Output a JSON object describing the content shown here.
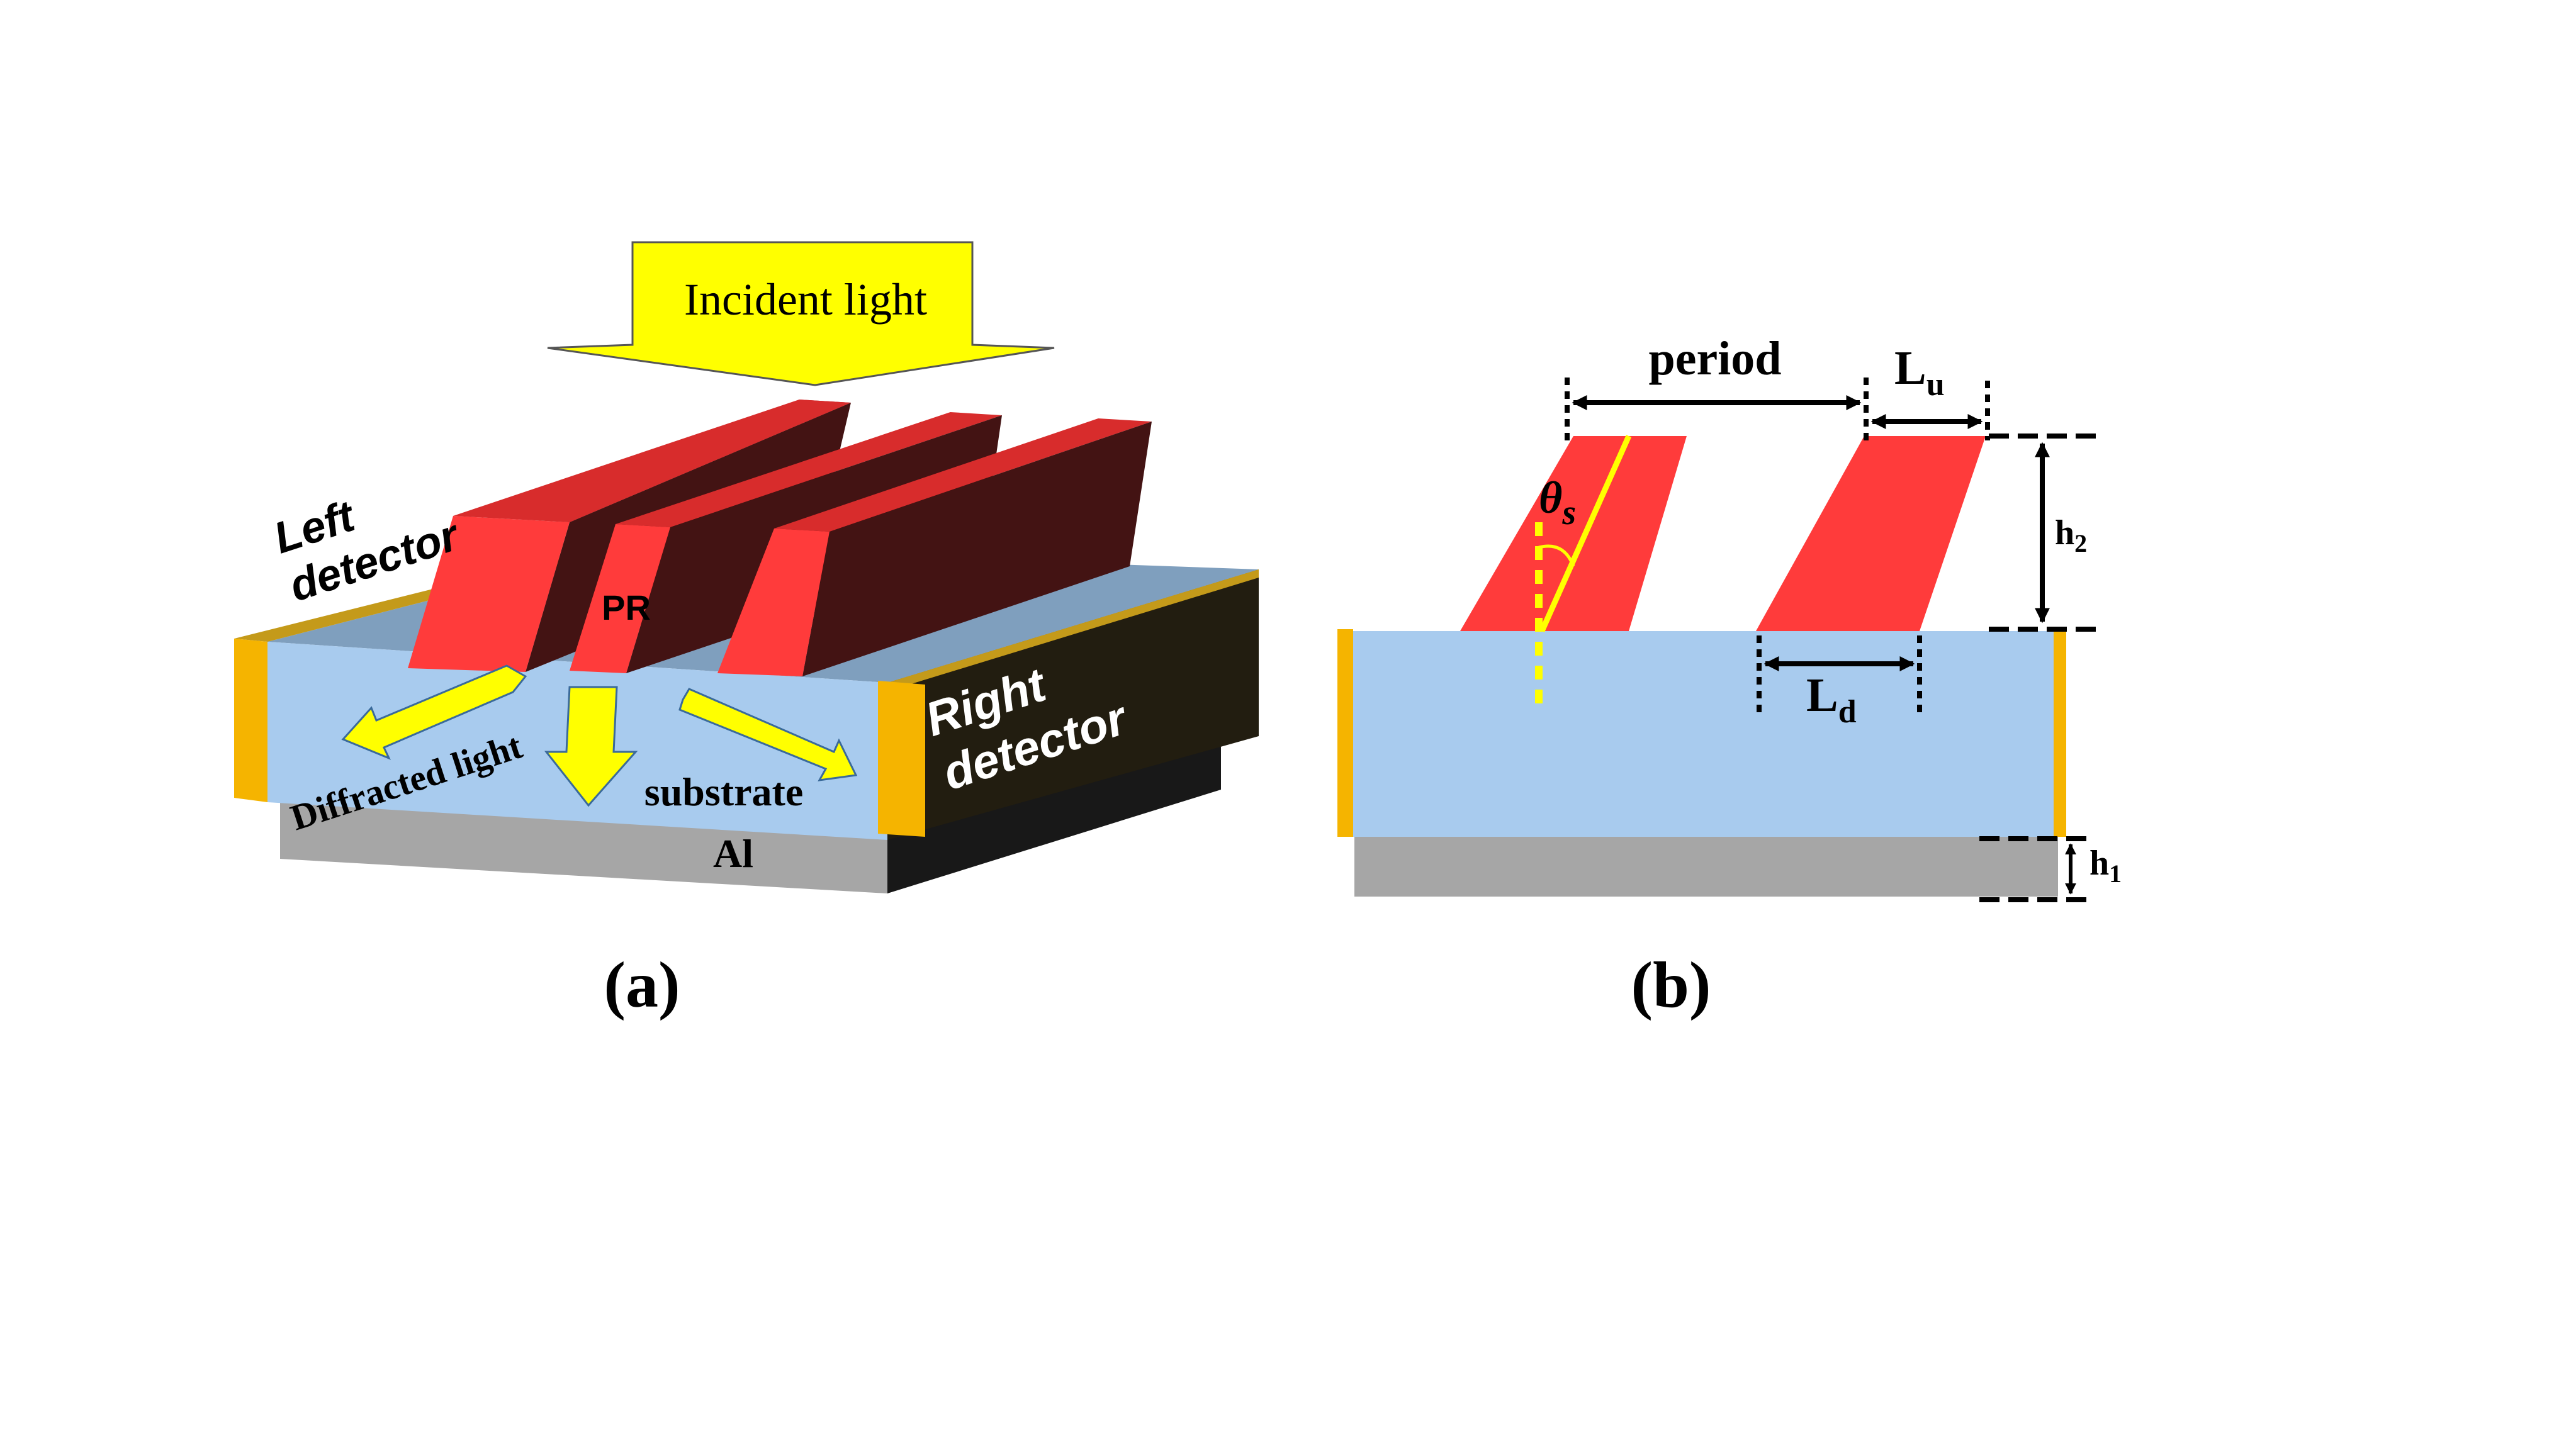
{
  "panel_a": {
    "incident_light": "Incident light",
    "left_detector_line1": "Left",
    "left_detector_line2": "detector",
    "pr_label": "PR",
    "diffracted_light": "Diffracted light",
    "substrate": "substrate",
    "right_detector_line1": "Right",
    "right_detector_line2": "detector",
    "al_label": "Al",
    "caption": "(a)"
  },
  "panel_b": {
    "period": "period",
    "lu_main": "L",
    "lu_sub": "u",
    "theta_main": "θ",
    "theta_sub": "s",
    "h2_main": "h",
    "h2_sub": "2",
    "ld_main": "L",
    "ld_sub": "d",
    "h1_main": "h",
    "h1_sub": "1",
    "caption": "(b)"
  },
  "colors": {
    "substrate": "#a8cbee",
    "aluminum": "#a6a6a6",
    "grating_red": "#ff3b3b",
    "grating_dark": "#431313",
    "detector_gold": "#f5b400",
    "incident_arrow": "#ffff00",
    "arrow_stroke": "#3a6a9a"
  }
}
